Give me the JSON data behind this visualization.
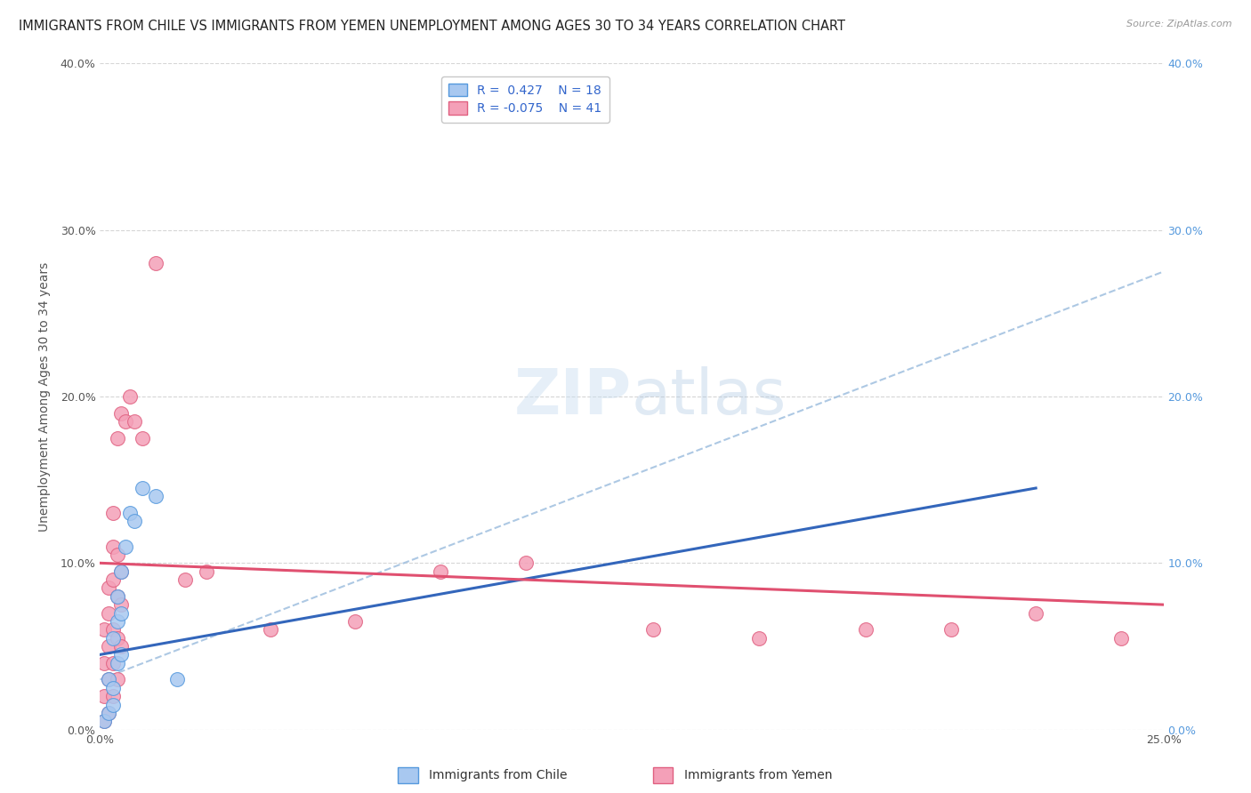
{
  "title": "IMMIGRANTS FROM CHILE VS IMMIGRANTS FROM YEMEN UNEMPLOYMENT AMONG AGES 30 TO 34 YEARS CORRELATION CHART",
  "source": "Source: ZipAtlas.com",
  "ylabel": "Unemployment Among Ages 30 to 34 years",
  "xlabel_chile": "Immigrants from Chile",
  "xlabel_yemen": "Immigrants from Yemen",
  "xlim": [
    0.0,
    0.25
  ],
  "ylim": [
    0.0,
    0.4
  ],
  "chile_R": 0.427,
  "chile_N": 18,
  "yemen_R": -0.075,
  "yemen_N": 41,
  "chile_color": "#a8c8f0",
  "chile_edge_color": "#5599dd",
  "chile_line_color": "#3366bb",
  "yemen_color": "#f4a0b8",
  "yemen_edge_color": "#e06080",
  "yemen_line_color": "#e05070",
  "dash_color": "#99bbdd",
  "watermark_color": "#d8eaf8",
  "background_color": "#ffffff",
  "grid_color": "#cccccc",
  "right_tick_color": "#5599dd",
  "title_fontsize": 10.5,
  "axis_fontsize": 10,
  "tick_fontsize": 9,
  "legend_fontsize": 10,
  "chile_scatter_x": [
    0.001,
    0.002,
    0.002,
    0.003,
    0.003,
    0.003,
    0.004,
    0.004,
    0.004,
    0.005,
    0.005,
    0.005,
    0.006,
    0.007,
    0.008,
    0.01,
    0.013,
    0.018
  ],
  "chile_scatter_y": [
    0.005,
    0.01,
    0.03,
    0.015,
    0.025,
    0.055,
    0.04,
    0.065,
    0.08,
    0.045,
    0.07,
    0.095,
    0.11,
    0.13,
    0.125,
    0.145,
    0.14,
    0.03
  ],
  "yemen_scatter_x": [
    0.001,
    0.001,
    0.001,
    0.001,
    0.002,
    0.002,
    0.002,
    0.002,
    0.002,
    0.003,
    0.003,
    0.003,
    0.003,
    0.003,
    0.003,
    0.004,
    0.004,
    0.004,
    0.004,
    0.004,
    0.005,
    0.005,
    0.005,
    0.005,
    0.006,
    0.007,
    0.008,
    0.01,
    0.013,
    0.02,
    0.025,
    0.04,
    0.06,
    0.08,
    0.1,
    0.13,
    0.155,
    0.18,
    0.2,
    0.22,
    0.24
  ],
  "yemen_scatter_y": [
    0.005,
    0.02,
    0.04,
    0.06,
    0.01,
    0.03,
    0.05,
    0.07,
    0.085,
    0.02,
    0.04,
    0.06,
    0.09,
    0.11,
    0.13,
    0.03,
    0.055,
    0.08,
    0.105,
    0.175,
    0.05,
    0.075,
    0.095,
    0.19,
    0.185,
    0.2,
    0.185,
    0.175,
    0.28,
    0.09,
    0.095,
    0.06,
    0.065,
    0.095,
    0.1,
    0.06,
    0.055,
    0.06,
    0.06,
    0.07,
    0.055
  ],
  "chile_line_x0": 0.0,
  "chile_line_y0": 0.045,
  "chile_line_x1": 0.22,
  "chile_line_y1": 0.145,
  "yemen_line_x0": 0.0,
  "yemen_line_y0": 0.1,
  "yemen_line_x1": 0.25,
  "yemen_line_y1": 0.075,
  "dash_line_x0": 0.0,
  "dash_line_y0": 0.03,
  "dash_line_x1": 0.25,
  "dash_line_y1": 0.275
}
